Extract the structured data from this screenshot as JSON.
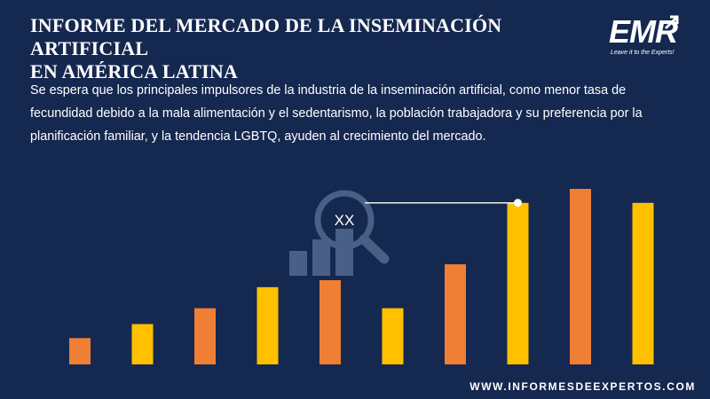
{
  "header": {
    "title_line1": "INFORME DEL MERCADO DE LA INSEMINACIÓN ARTIFICIAL",
    "title_line2": "EN AMÉRICA LATINA"
  },
  "logo": {
    "text": "EMR",
    "tagline": "Leave it to the Experts!"
  },
  "description": "Se espera que los principales impulsores de la industria de la inseminación artificial, como menor tasa de fecundidad debido a la mala alimentación y el sedentarismo, la población trabajadora y su preferencia por la planificación familiar, y la tendencia LGBTQ, ayuden al crecimiento del mercado.",
  "footer": {
    "url": "WWW.INFORMESDEEXPERTOS.COM"
  },
  "colors": {
    "background": "#15284f",
    "bar_orange": "#ef7f34",
    "bar_yellow": "#ffc000",
    "icon_muted": "#4a5f86",
    "line": "#ffffff"
  },
  "chart_data": {
    "type": "bar",
    "callout_label": "XX",
    "ylim": [
      0,
      100
    ],
    "values": [
      15,
      23,
      32,
      44,
      48,
      32,
      57,
      92,
      100,
      92
    ],
    "colors": [
      "#ef7f34",
      "#ffc000",
      "#ef7f34",
      "#ffc000",
      "#ef7f34",
      "#ffc000",
      "#ef7f34",
      "#ffc000",
      "#ef7f34",
      "#ffc000"
    ],
    "grid": false,
    "legend": "none"
  }
}
